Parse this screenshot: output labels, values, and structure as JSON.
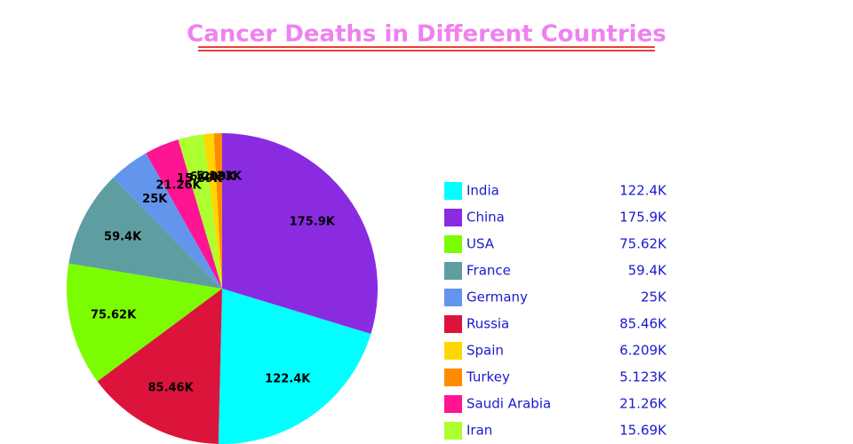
{
  "chart_data": {
    "type": "pie",
    "title": "Cancer Deaths in Different Countries",
    "categories": [
      "India",
      "China",
      "USA",
      "France",
      "Germany",
      "Russia",
      "Spain",
      "Turkey",
      "Saudi Arabia",
      "Iran"
    ],
    "values": [
      122400,
      175900,
      75620,
      59400,
      25000,
      85460,
      6209,
      5123,
      21260,
      15690
    ],
    "value_labels": [
      "122.4K",
      "175.9K",
      "75.62K",
      "59.4K",
      "25K",
      "85.46K",
      "6.209K",
      "5.123K",
      "21.26K",
      "15.69K"
    ],
    "colors": [
      "#00ffff",
      "#8a2be2",
      "#7cfc00",
      "#5f9ea0",
      "#6495ed",
      "#dc143c",
      "#ffd700",
      "#ff8c00",
      "#ff1493",
      "#adff2f"
    ]
  }
}
